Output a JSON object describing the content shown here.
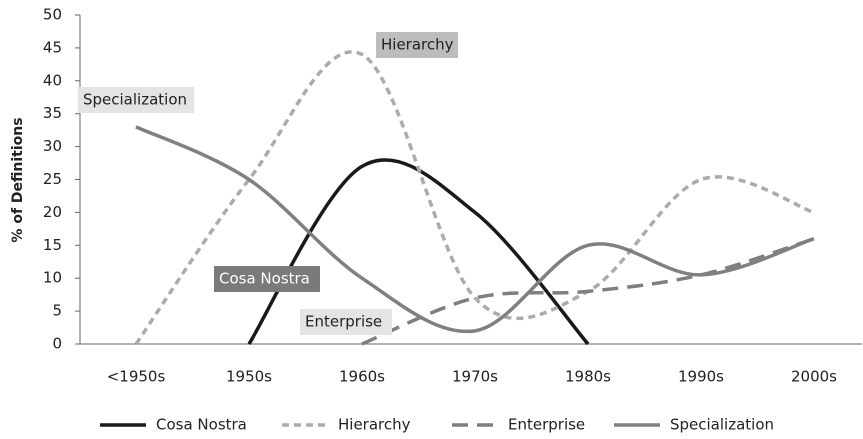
{
  "chart_data": {
    "type": "line",
    "ylabel": "% of Definitions",
    "categories": [
      "<1950s",
      "1950s",
      "1960s",
      "1970s",
      "1980s",
      "1990s",
      "2000s"
    ],
    "series": [
      {
        "name": "Cosa Nostra",
        "color": "#1a1a1a",
        "dash": "solid",
        "values": [
          null,
          0,
          27,
          20,
          0,
          null,
          null
        ]
      },
      {
        "name": "Hierarchy",
        "color": "#ababab",
        "dash": "short",
        "values": [
          0,
          25,
          44,
          7,
          8,
          25,
          20
        ]
      },
      {
        "name": "Enterprise",
        "color": "#7f7f7f",
        "dash": "long",
        "values": [
          null,
          null,
          0,
          7,
          8,
          10.5,
          16
        ]
      },
      {
        "name": "Specialization",
        "color": "#808080",
        "dash": "solid",
        "values": [
          33,
          25,
          10,
          2,
          15,
          10.5,
          16
        ]
      }
    ],
    "annotations": [
      "Hierarchy",
      "Specialization",
      "Cosa Nostra",
      "Enterprise"
    ],
    "ylim": [
      0,
      50
    ],
    "yticks": [
      0,
      5,
      10,
      15,
      20,
      25,
      30,
      35,
      40,
      45,
      50
    ],
    "grid": false,
    "legend": "bottom"
  }
}
